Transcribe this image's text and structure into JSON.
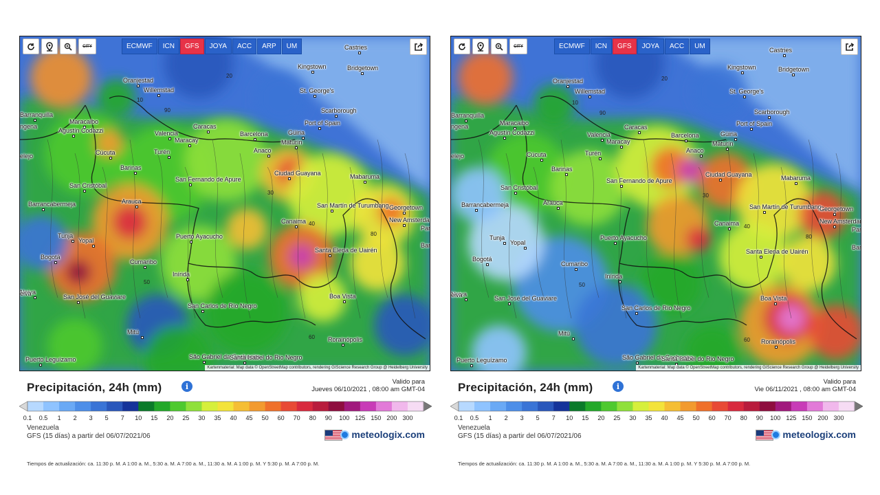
{
  "toolbar": {
    "tool_icons": [
      "refresh-icon",
      "location-pin-icon",
      "zoom-icon",
      "city-toggle-icon"
    ],
    "city_toggle_label": "CITY",
    "models": [
      "ECMWF",
      "ICN",
      "GFS",
      "JOYA",
      "ACC",
      "ARP",
      "UM"
    ],
    "active_model": "GFS",
    "share_icon": "share-icon"
  },
  "attribution": "Kartenmaterial: Map data © OpenStreetMap contributors, rendering GIScience Research Group @ Heidelberg University",
  "cities": [
    {
      "name": "Castries"
    },
    {
      "name": "Kingstown"
    },
    {
      "name": "Bridgetown"
    },
    {
      "name": "St. George's"
    },
    {
      "name": "Oranjestad"
    },
    {
      "name": "Willemstad"
    },
    {
      "name": "Scarborough"
    },
    {
      "name": "Port of Spain"
    },
    {
      "name": "Barranquilla"
    },
    {
      "name": "Maracaibo"
    },
    {
      "name": "Caracas"
    },
    {
      "name": "Valencia"
    },
    {
      "name": "Barcelona"
    },
    {
      "name": "Güiria"
    },
    {
      "name": "Maracay"
    },
    {
      "name": "Agustín Codazzi"
    },
    {
      "name": "Maturín"
    },
    {
      "name": "Anaco"
    },
    {
      "name": "Turén"
    },
    {
      "name": "Barinas"
    },
    {
      "name": "Ciudad Guayana"
    },
    {
      "name": "San Fernando de Apure"
    },
    {
      "name": "Mabaruma"
    },
    {
      "name": "San Cristóbal"
    },
    {
      "name": "Barrancabermeja"
    },
    {
      "name": "Arauca"
    },
    {
      "name": "San Martín de Turumbang"
    },
    {
      "name": "Georgetown"
    },
    {
      "name": "New Amsterdam"
    },
    {
      "name": "Canaima"
    },
    {
      "name": "Tunja"
    },
    {
      "name": "Yopal"
    },
    {
      "name": "Puerto Ayacucho"
    },
    {
      "name": "Santa Elena de Uairén"
    },
    {
      "name": "Bogotá"
    },
    {
      "name": "Cumaribo"
    },
    {
      "name": "Inírida"
    },
    {
      "name": "San José del Guaviare"
    },
    {
      "name": "Boa Vista"
    },
    {
      "name": "San Carlos de Río Negro"
    },
    {
      "name": "Mitú"
    },
    {
      "name": "Rorainópolis"
    },
    {
      "name": "São Gabriel da Cachoeira"
    },
    {
      "name": "Santa Isabel do Rio Negro"
    },
    {
      "name": "Puerto Leguízamo"
    },
    {
      "name": "Neiva"
    },
    {
      "name": "Cúcuta"
    }
  ],
  "edge_labels": [
    "ngena",
    "elejo",
    "eiva",
    "Paramaribo",
    "Bartica"
  ],
  "contour_labels": [
    "10",
    "20",
    "30",
    "40",
    "50",
    "60",
    "80",
    "90"
  ],
  "legend": {
    "title": "Precipitación, 24h (mm)",
    "info_icon": "info-icon",
    "valid_label": "Valido para",
    "scale_values": [
      "0.1",
      "0.5",
      "1",
      "2",
      "3",
      "5",
      "7",
      "10",
      "15",
      "20",
      "25",
      "30",
      "35",
      "40",
      "45",
      "50",
      "60",
      "70",
      "80",
      "90",
      "100",
      "125",
      "150",
      "200",
      "300"
    ],
    "scale_colors": [
      "#b7d9ff",
      "#8fc3ff",
      "#6aa9f5",
      "#4d8ee8",
      "#3a74d6",
      "#2a57bb",
      "#15339a",
      "#0b7a2a",
      "#23a82a",
      "#4ec92f",
      "#8fe03a",
      "#d6ef3c",
      "#f3e33a",
      "#f5be34",
      "#f29a2f",
      "#ef702b",
      "#e84a35",
      "#d82a3e",
      "#b81c3d",
      "#8e0e3f",
      "#a11a7d",
      "#c83bb7",
      "#e27ad8",
      "#f1b8ec",
      "#f6dcf4"
    ]
  },
  "footer": {
    "region": "Venezuela",
    "run": "GFS (15 días) a partir del 06/07/2021/06",
    "flag_icon": "us-flag-icon",
    "brand_logo": "meteologix-logo-icon",
    "brand": "meteologix.com",
    "updates": "Tiempos de actualización: ca. 11:30 p. M. A 1:00 a. M., 5:30 a. M. A 7:00 a. M., 11:30 a. M. A 1:00 p. M. Y 5:30 p. M. A 7:00 p. M."
  },
  "panels": [
    {
      "valid_date": "Jueves 06/10/2021 ,  08:00 am  GMT-04",
      "updates": "Tiempos de actualización: ca. 11:30 p. M. A 1:00 a. M., 5:30 a. M. A 7:00 a. M., 11:30 a. M. A 1:00 p. M. Y 5:30 p. M. A 7:00 p. M.",
      "color_bg": "#3f73d6"
    },
    {
      "valid_date": "Vie 06/11/2021 ,  08:00 am  GMT-04",
      "updates": "Tiempos de actualización: ca. 11:30 p. M. A 1:00 a. M., 5:30 a. M. A 7:00 a. M., 11:30 a. M. A 1:00 p. M. Y 5:30 p. M. A 7:00 p. M.",
      "color_bg": "#3f73d6"
    }
  ]
}
